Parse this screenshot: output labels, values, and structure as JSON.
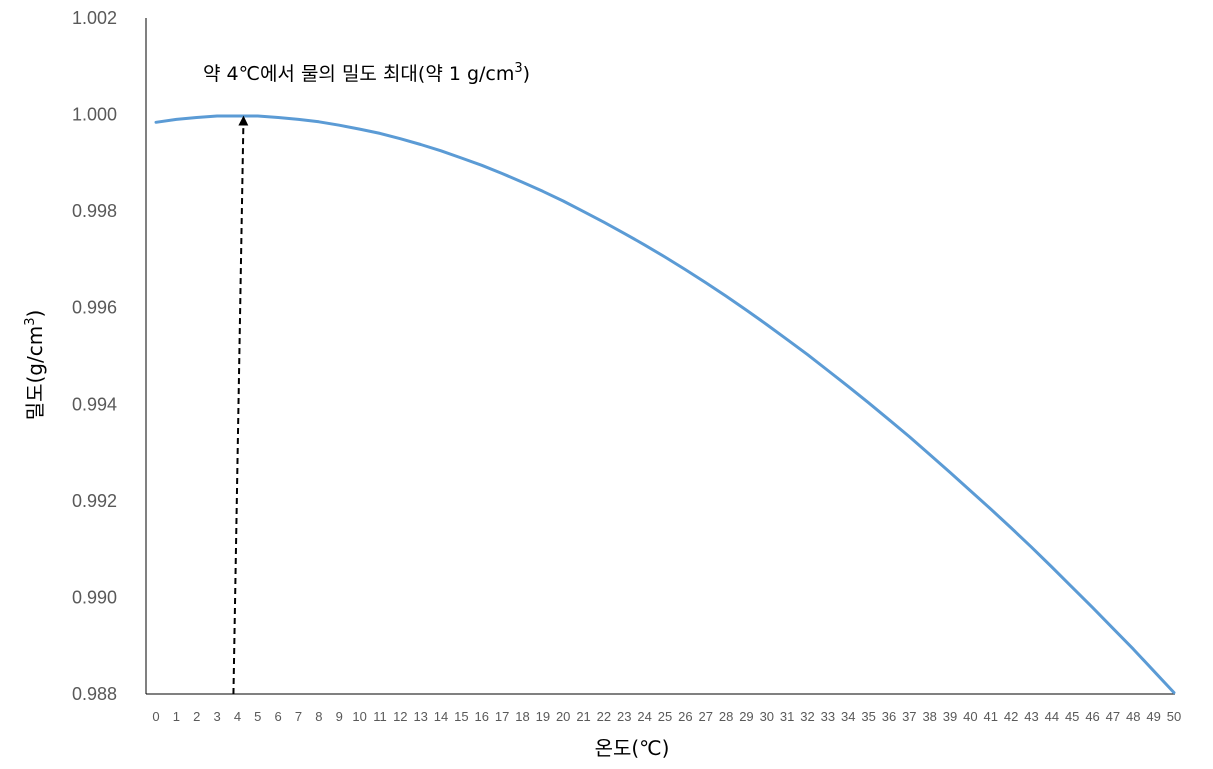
{
  "chart_data": {
    "type": "line",
    "xlabel": "온도(℃)",
    "ylabel": "밀도(g/cm",
    "ylabel_sup": "3",
    "ylabel_close": ")",
    "ylim": [
      0.988,
      1.002
    ],
    "yticks": [
      "0.988",
      "0.990",
      "0.992",
      "0.994",
      "0.996",
      "0.998",
      "1.000",
      "1.002"
    ],
    "x": [
      0,
      1,
      2,
      3,
      4,
      5,
      6,
      7,
      8,
      9,
      10,
      11,
      12,
      13,
      14,
      15,
      16,
      17,
      18,
      19,
      20,
      21,
      22,
      23,
      24,
      25,
      26,
      27,
      28,
      29,
      30,
      31,
      32,
      33,
      34,
      35,
      36,
      37,
      38,
      39,
      40,
      41,
      42,
      43,
      44,
      45,
      46,
      47,
      48,
      49,
      50
    ],
    "xtick_labels": [
      "0",
      "1",
      "2",
      "3",
      "4",
      "5",
      "6",
      "7",
      "8",
      "9",
      "10",
      "11",
      "12",
      "13",
      "14",
      "15",
      "16",
      "17",
      "18",
      "19",
      "20",
      "21",
      "22",
      "23",
      "24",
      "25",
      "26",
      "27",
      "28",
      "29",
      "30",
      "31",
      "32",
      "33",
      "34",
      "35",
      "36",
      "37",
      "38",
      "39",
      "40",
      "41",
      "42",
      "43",
      "44",
      "45",
      "46",
      "47",
      "48",
      "49",
      "50"
    ],
    "series": [
      {
        "color": "#5b9bd5",
        "values": [
          0.99984,
          0.9999,
          0.99994,
          0.99997,
          0.99997,
          0.99997,
          0.99994,
          0.9999,
          0.99985,
          0.99978,
          0.9997,
          0.99961,
          0.9995,
          0.99938,
          0.99925,
          0.9991,
          0.99895,
          0.99878,
          0.9986,
          0.99841,
          0.99821,
          0.99799,
          0.99777,
          0.99754,
          0.9973,
          0.99705,
          0.99679,
          0.99652,
          0.99624,
          0.99595,
          0.99565,
          0.99534,
          0.99503,
          0.9947,
          0.99437,
          0.99403,
          0.99368,
          0.99333,
          0.99296,
          0.99259,
          0.99221,
          0.99183,
          0.99144,
          0.99104,
          0.99063,
          0.99021,
          0.98979,
          0.98936,
          0.98893,
          0.98848,
          0.98803
        ]
      }
    ],
    "annotation": {
      "text": "약 4℃에서 물의 밀도 최대(약 1 g/cm",
      "sup": "3",
      "close": ")",
      "arrow_x": 4,
      "arrow_y": 1.0,
      "arrow_style": "dashed",
      "color": "#000000"
    },
    "grid": false,
    "legend": "none"
  }
}
